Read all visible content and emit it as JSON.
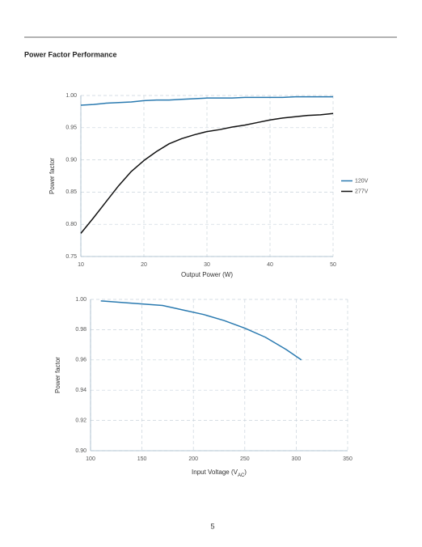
{
  "heading": "Power Factor Performance",
  "page_number": "5",
  "chart_data": [
    {
      "type": "line",
      "xlabel": "Output Power (W)",
      "ylabel": "Power factor",
      "x": [
        10,
        12,
        14,
        16,
        18,
        20,
        22,
        24,
        26,
        28,
        30,
        32,
        34,
        36,
        38,
        40,
        42,
        44,
        46,
        48,
        50
      ],
      "series": [
        {
          "name": "120V",
          "color": "#2a7ab0",
          "values": [
            0.985,
            0.986,
            0.988,
            0.989,
            0.99,
            0.992,
            0.993,
            0.993,
            0.994,
            0.995,
            0.996,
            0.996,
            0.996,
            0.997,
            0.997,
            0.997,
            0.997,
            0.998,
            0.998,
            0.998,
            0.998
          ]
        },
        {
          "name": "277V",
          "color": "#111111",
          "values": [
            0.786,
            0.81,
            0.835,
            0.86,
            0.882,
            0.899,
            0.913,
            0.925,
            0.933,
            0.939,
            0.944,
            0.947,
            0.951,
            0.954,
            0.958,
            0.962,
            0.965,
            0.967,
            0.969,
            0.97,
            0.972
          ]
        }
      ],
      "xlim": [
        10,
        50
      ],
      "xticks": [
        10,
        20,
        30,
        40,
        50
      ],
      "ylim": [
        0.75,
        1.0
      ],
      "yticks": [
        0.75,
        {
          "value": 0.8,
          "label": "0.80"
        },
        0.85,
        {
          "value": 0.9,
          "label": "0.90"
        },
        0.95,
        {
          "value": 1.0,
          "label": "1.00"
        }
      ],
      "grid": true,
      "legend": "right"
    },
    {
      "type": "line",
      "xlabel": [
        "Input Voltage (V",
        "AC",
        ")"
      ],
      "ylabel": "Power factor",
      "x": [
        110,
        130,
        150,
        170,
        190,
        210,
        230,
        250,
        270,
        290,
        305
      ],
      "series": [
        {
          "color": "#2a7ab0",
          "values": [
            0.999,
            0.998,
            0.997,
            0.996,
            0.993,
            0.99,
            0.986,
            0.981,
            0.975,
            0.967,
            0.96
          ]
        }
      ],
      "xlim": [
        100,
        350
      ],
      "xticks": [
        100,
        150,
        200,
        250,
        300,
        350
      ],
      "ylim": [
        0.9,
        1.0
      ],
      "yticks": [
        {
          "value": 0.9,
          "label": "0.90"
        },
        0.92,
        0.94,
        0.96,
        0.98,
        {
          "value": 1.0,
          "label": "1.00"
        }
      ],
      "grid": true
    }
  ]
}
